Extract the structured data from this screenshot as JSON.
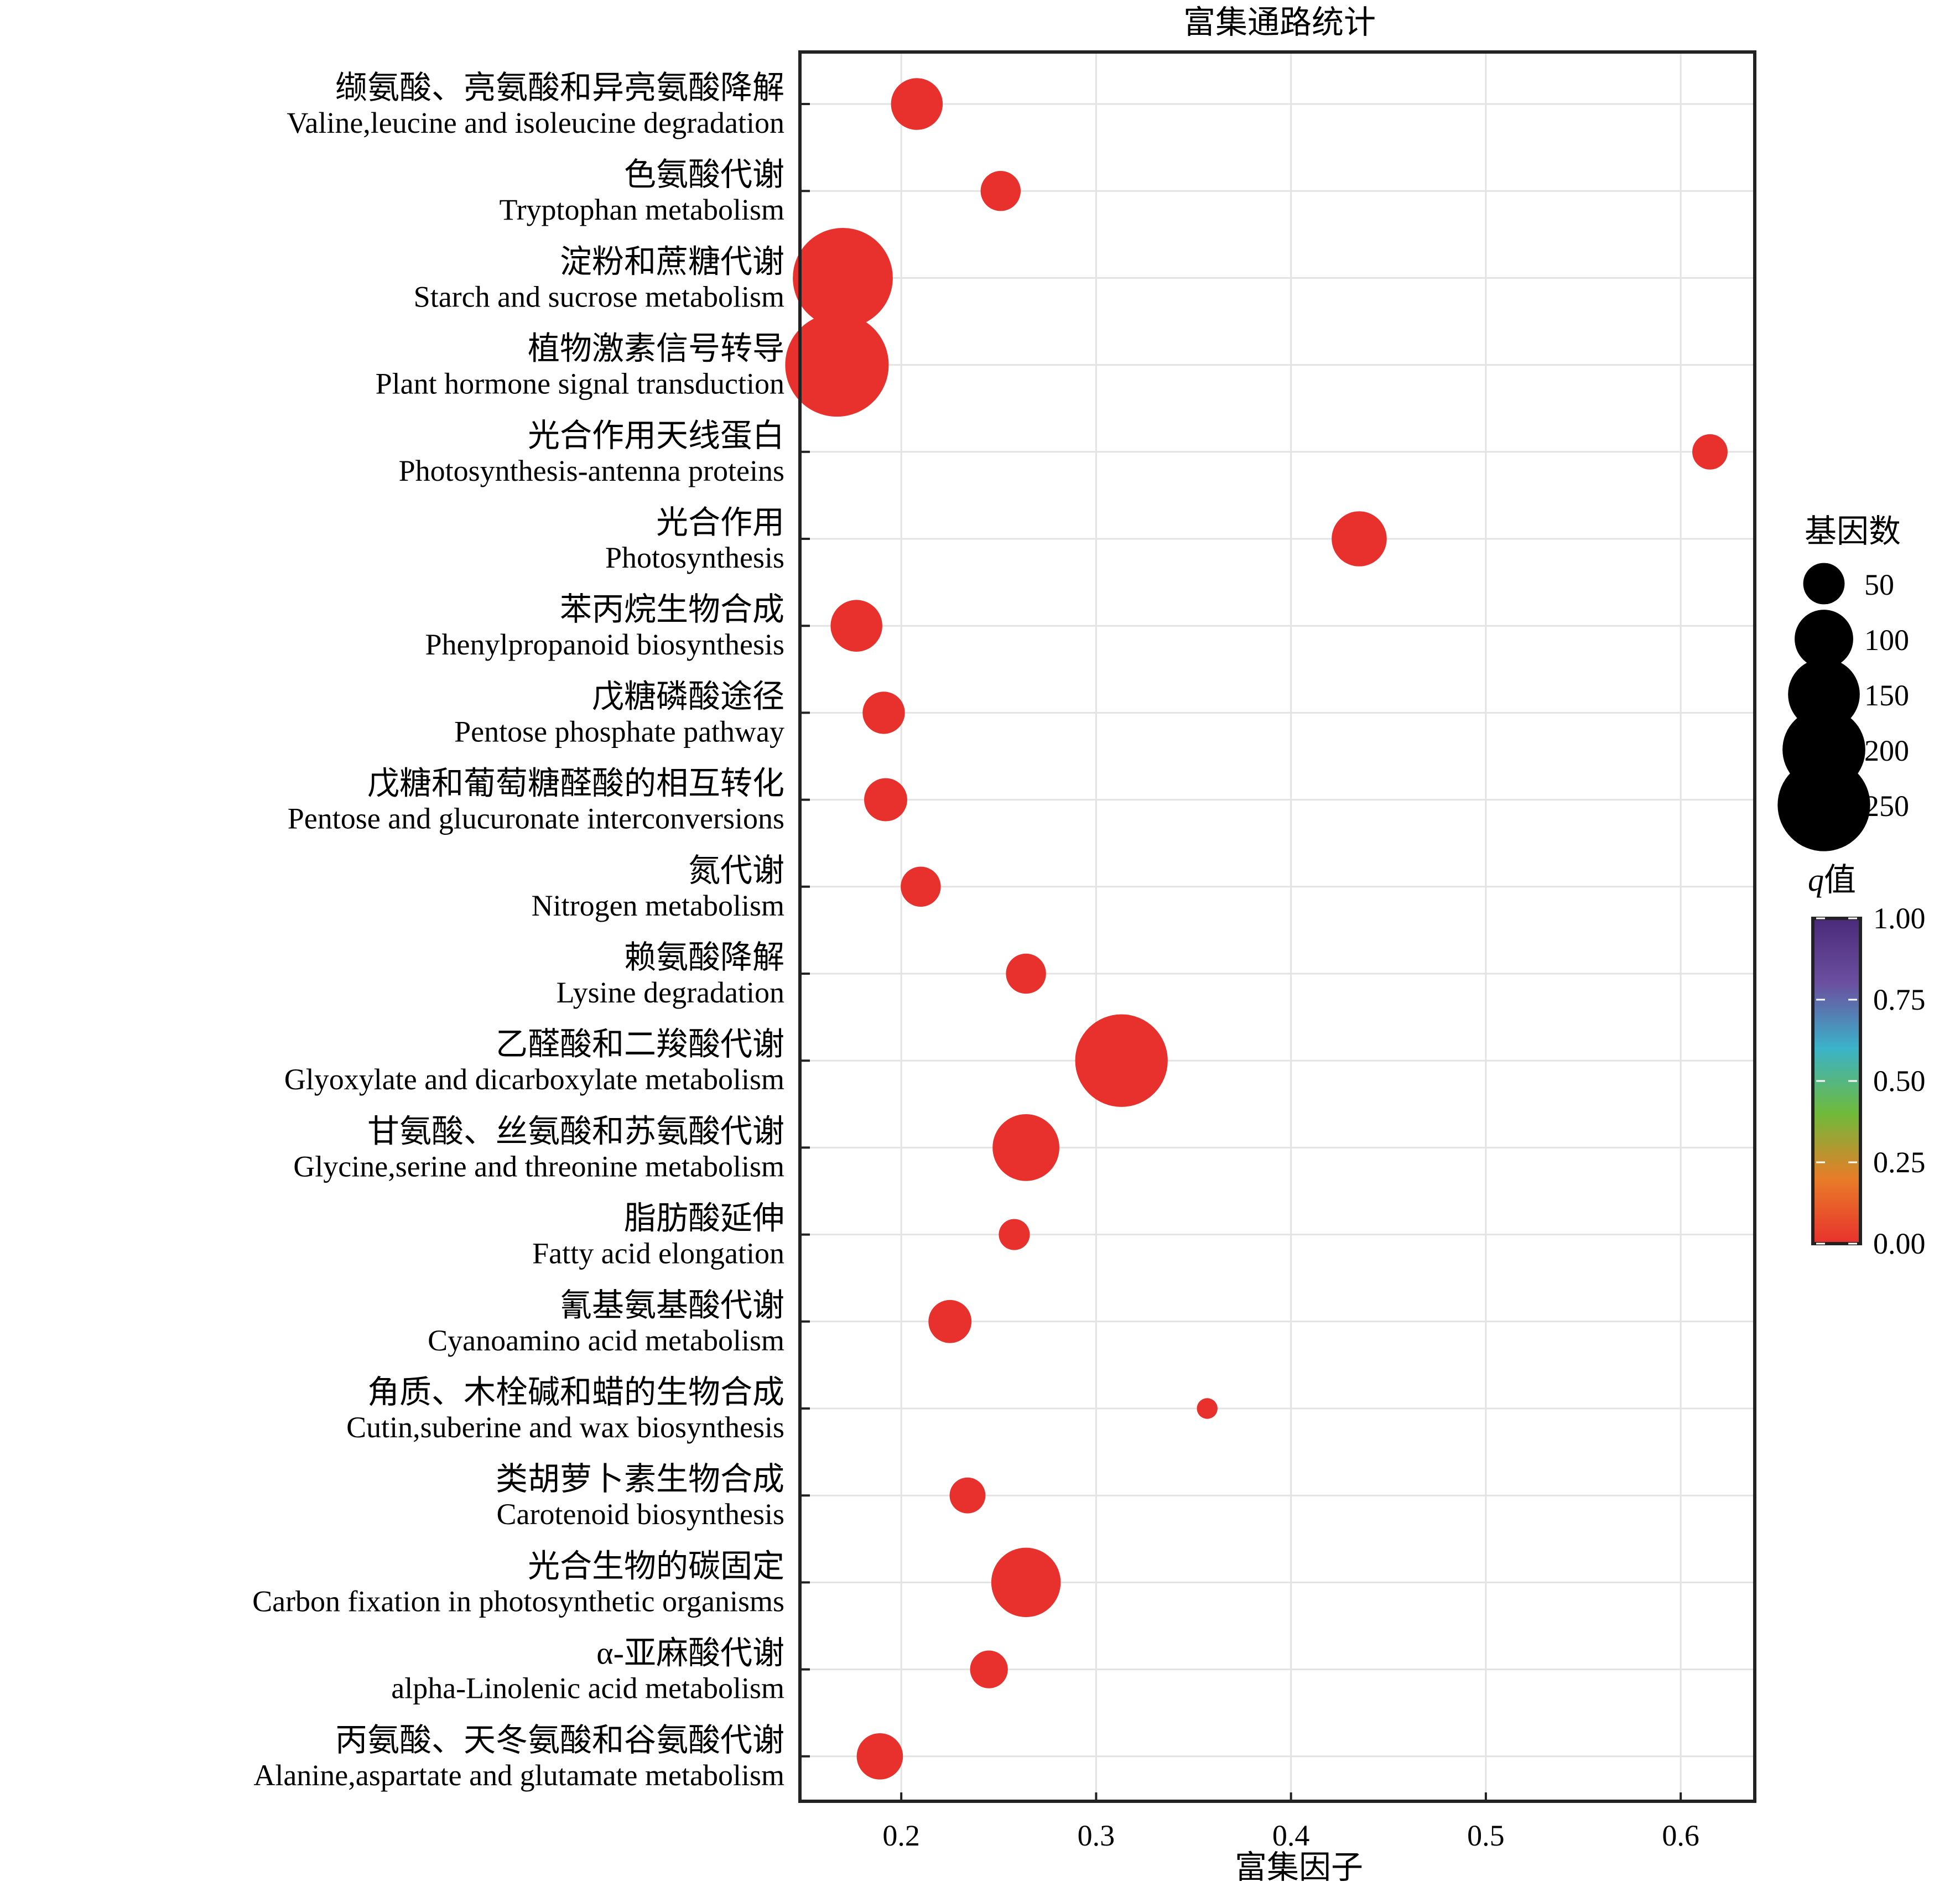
{
  "chart_data": {
    "type": "scatter",
    "title": "富集通路统计",
    "xlabel": "富集因子",
    "xlim": [
      0.148,
      0.638
    ],
    "x_ticks": [
      "0.2",
      "0.3",
      "0.4",
      "0.5",
      "0.6"
    ],
    "grid": true,
    "categories": [
      {
        "zh": "缬氨酸、亮氨酸和异亮氨酸降解",
        "en": "Valine,leucine and isoleucine degradation"
      },
      {
        "zh": "色氨酸代谢",
        "en": "Tryptophan metabolism"
      },
      {
        "zh": "淀粉和蔗糖代谢",
        "en": "Starch and sucrose metabolism"
      },
      {
        "zh": "植物激素信号转导",
        "en": "Plant hormone signal transduction"
      },
      {
        "zh": "光合作用天线蛋白",
        "en": "Photosynthesis-antenna proteins"
      },
      {
        "zh": "光合作用",
        "en": "Photosynthesis"
      },
      {
        "zh": "苯丙烷生物合成",
        "en": "Phenylpropanoid biosynthesis"
      },
      {
        "zh": "戊糖磷酸途径",
        "en": "Pentose phosphate pathway"
      },
      {
        "zh": "戊糖和葡萄糖醛酸的相互转化",
        "en": "Pentose and glucuronate interconversions"
      },
      {
        "zh": "氮代谢",
        "en": "Nitrogen metabolism"
      },
      {
        "zh": "赖氨酸降解",
        "en": "Lysine degradation"
      },
      {
        "zh": "乙醛酸和二羧酸代谢",
        "en": "Glyoxylate and dicarboxylate metabolism"
      },
      {
        "zh": "甘氨酸、丝氨酸和苏氨酸代谢",
        "en": "Glycine,serine and threonine metabolism"
      },
      {
        "zh": "脂肪酸延伸",
        "en": "Fatty acid elongation"
      },
      {
        "zh": "氰基氨基酸代谢",
        "en": "Cyanoamino acid metabolism"
      },
      {
        "zh": "角质、木栓碱和蜡的生物合成",
        "en": "Cutin,suberine and wax biosynthesis"
      },
      {
        "zh": "类胡萝卜素生物合成",
        "en": "Carotenoid biosynthesis"
      },
      {
        "zh": "光合生物的碳固定",
        "en": "Carbon fixation in photosynthetic organisms"
      },
      {
        "zh": "α-亚麻酸代谢",
        "en": "alpha-Linolenic acid metabolism"
      },
      {
        "zh": "丙氨酸、天冬氨酸和谷氨酸代谢",
        "en": "Alanine,aspartate and glutamate metabolism"
      }
    ],
    "points": [
      {
        "x": 0.208,
        "gene_count": 75,
        "q": 0.0
      },
      {
        "x": 0.251,
        "gene_count": 45,
        "q": 0.0
      },
      {
        "x": 0.17,
        "gene_count": 280,
        "q": 0.0
      },
      {
        "x": 0.167,
        "gene_count": 300,
        "q": 0.0
      },
      {
        "x": 0.615,
        "gene_count": 35,
        "q": 0.0
      },
      {
        "x": 0.435,
        "gene_count": 85,
        "q": 0.0
      },
      {
        "x": 0.177,
        "gene_count": 75,
        "q": 0.0
      },
      {
        "x": 0.191,
        "gene_count": 50,
        "q": 0.0
      },
      {
        "x": 0.192,
        "gene_count": 52,
        "q": 0.0
      },
      {
        "x": 0.21,
        "gene_count": 45,
        "q": 0.0
      },
      {
        "x": 0.264,
        "gene_count": 45,
        "q": 0.0
      },
      {
        "x": 0.313,
        "gene_count": 240,
        "q": 0.0
      },
      {
        "x": 0.264,
        "gene_count": 125,
        "q": 0.0
      },
      {
        "x": 0.258,
        "gene_count": 27,
        "q": 0.0
      },
      {
        "x": 0.225,
        "gene_count": 52,
        "q": 0.0
      },
      {
        "x": 0.357,
        "gene_count": 12,
        "q": 0.0
      },
      {
        "x": 0.234,
        "gene_count": 36,
        "q": 0.0
      },
      {
        "x": 0.264,
        "gene_count": 135,
        "q": 0.0
      },
      {
        "x": 0.245,
        "gene_count": 40,
        "q": 0.0
      },
      {
        "x": 0.189,
        "gene_count": 60,
        "q": 0.0
      }
    ],
    "point_color": "#e8312d",
    "size_legend": {
      "title": "基因数",
      "values": [
        50,
        100,
        150,
        200,
        250
      ],
      "labels": [
        "50",
        "100",
        "150",
        "200",
        "250"
      ]
    },
    "color_legend": {
      "title_italic": "q",
      "title_rest": "值",
      "ticks": [
        "1.00",
        "0.75",
        "0.50",
        "0.25",
        "0.00"
      ],
      "tick_values": [
        1.0,
        0.75,
        0.5,
        0.25,
        0.0
      ],
      "gradient": [
        "#e8312d",
        "#e87d28",
        "#6fba3a",
        "#3bb3c9",
        "#6c4fa0",
        "#4a2a7a"
      ]
    }
  }
}
